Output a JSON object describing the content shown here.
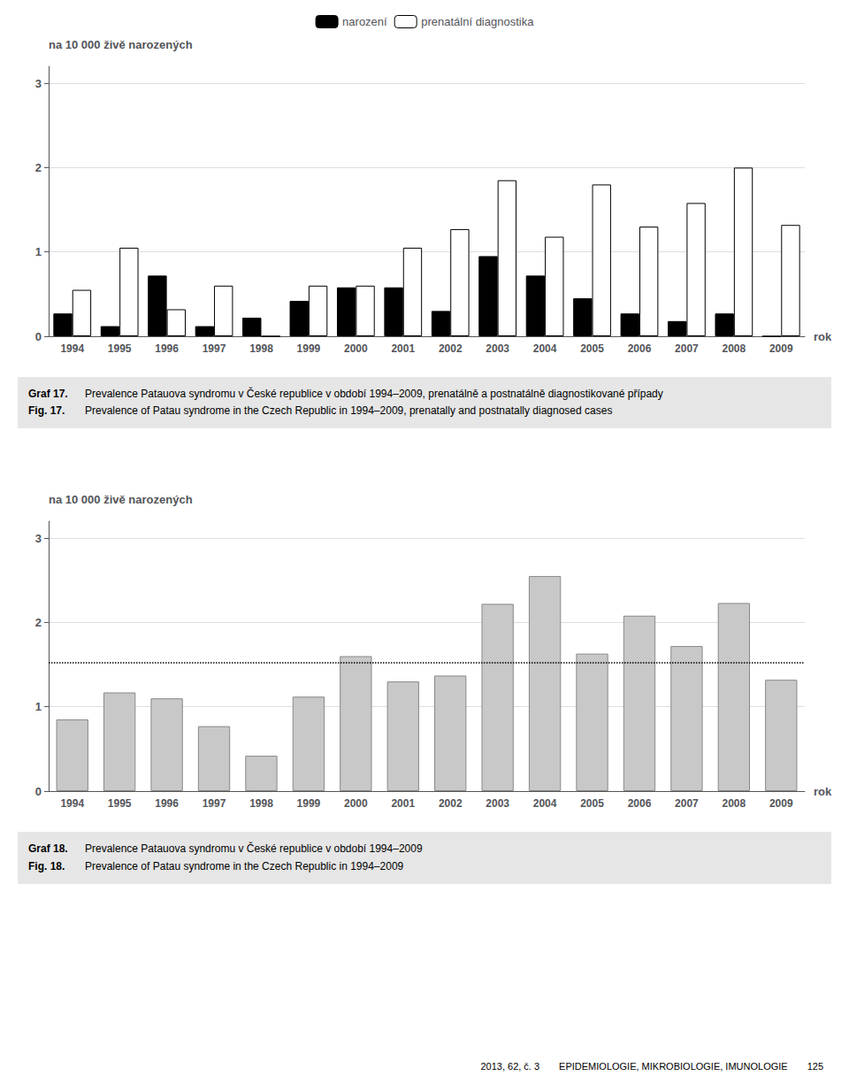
{
  "chart_data": [
    {
      "type": "bar",
      "categories": [
        "1994",
        "1995",
        "1996",
        "1997",
        "1998",
        "1999",
        "2000",
        "2001",
        "2002",
        "2003",
        "2004",
        "2005",
        "2006",
        "2007",
        "2008",
        "2009"
      ],
      "series": [
        {
          "name": "narození",
          "color": "#000000",
          "values": [
            0.27,
            0.12,
            0.72,
            0.12,
            0.22,
            0.42,
            0.58,
            0.58,
            0.3,
            0.95,
            0.72,
            0.45,
            0.27,
            0.18,
            0.27,
            0.0
          ]
        },
        {
          "name": "prenatální diagnostika",
          "color": "#ffffff",
          "values": [
            0.55,
            1.05,
            0.32,
            0.6,
            0.0,
            0.6,
            0.6,
            1.05,
            1.27,
            1.85,
            1.18,
            1.8,
            1.3,
            1.58,
            2.0,
            1.32
          ]
        }
      ],
      "xlabel": "rok",
      "ylabel": "na 10 000 živě narozených",
      "ylim": [
        0,
        3.2
      ],
      "yticks": [
        0,
        1,
        2,
        3
      ],
      "grid": true,
      "legend": "top",
      "annotations": [
        "Graf 17.",
        "Prevalence Patauova syndromu v České republice v období 1994–2009, prenatálně a postnatálně diagnostikované případy",
        "Fig. 17.",
        "Prevalence of Patau syndrome in the Czech Republic in 1994–2009, prenatally and postnatally diagnosed cases"
      ]
    },
    {
      "type": "bar",
      "categories": [
        "1994",
        "1995",
        "1996",
        "1997",
        "1998",
        "1999",
        "2000",
        "2001",
        "2002",
        "2003",
        "2004",
        "2005",
        "2006",
        "2007",
        "2008",
        "2009"
      ],
      "values": [
        0.85,
        1.17,
        1.1,
        0.77,
        0.42,
        1.12,
        1.6,
        1.3,
        1.37,
        2.22,
        2.55,
        1.63,
        2.08,
        1.72,
        2.23,
        1.32
      ],
      "color": "#c8c8c8",
      "reference_line": 1.52,
      "xlabel": "rok",
      "ylabel": "na 10 000 živě narozených",
      "ylim": [
        0,
        3.2
      ],
      "yticks": [
        0,
        1,
        2,
        3
      ],
      "grid": true,
      "annotations": [
        "Graf 18.",
        "Prevalence Patauova syndromu v České republice v období 1994–2009",
        "Fig. 18.",
        "Prevalence of Patau syndrome in the Czech Republic in 1994–2009",
        "2013, 62, č. 3  EPIDEMIOLOGIE, MIKROBIOLOGIE, IMUNOLOGIE  125"
      ]
    }
  ]
}
